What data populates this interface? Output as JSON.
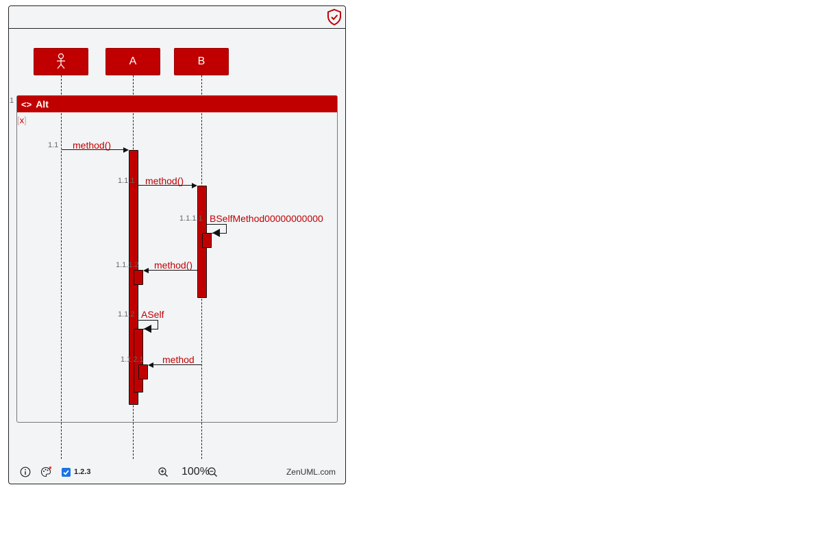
{
  "participants": [
    {
      "id": "actor",
      "label": "",
      "icon": "stick-figure-icon"
    },
    {
      "id": "A",
      "label": "A"
    },
    {
      "id": "B",
      "label": "B"
    }
  ],
  "fragment": {
    "number": "1",
    "type_icon": "<>",
    "title": "Alt",
    "condition": "x"
  },
  "messages": [
    {
      "number": "1.1",
      "label": "method()"
    },
    {
      "number": "1.1.1",
      "label": "method()"
    },
    {
      "number": "1.1.1.1",
      "label": "BSelfMethod00000000000"
    },
    {
      "number": "1.1.1.2",
      "label": "method()"
    },
    {
      "number": "1.1.2",
      "label": "ASelf"
    },
    {
      "number": "1.1.2.1",
      "label": "method"
    }
  ],
  "footer": {
    "numbering_label": "1.2.3",
    "numbering_checked": true,
    "zoom": "100%",
    "brand": "ZenUML.com"
  },
  "colors": {
    "accent": "#c00000",
    "background": "#f2f4f6",
    "checkbox": "#1a73e8"
  }
}
